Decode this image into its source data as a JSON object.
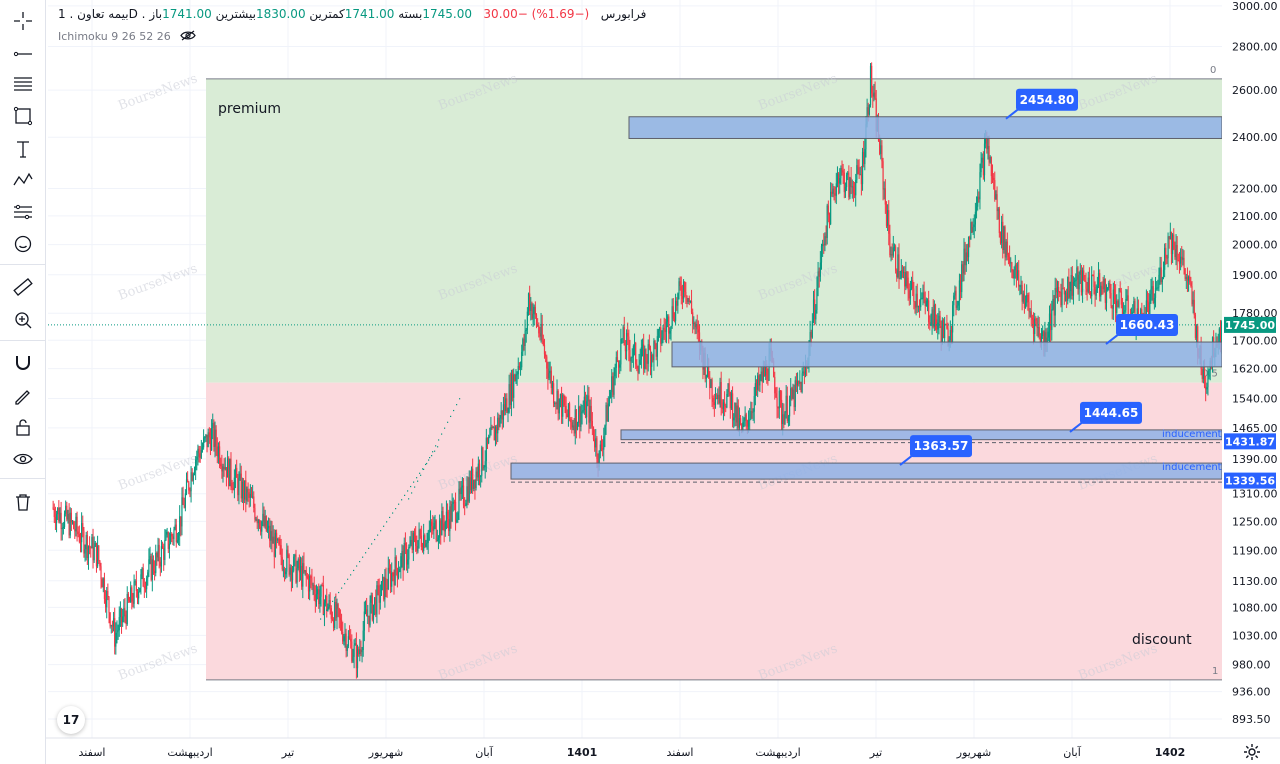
{
  "header": {
    "symbol_line": "بیمه تعاون . 1D . فرابورس",
    "open_label": "باز",
    "open_value": "1741.00",
    "high_label": "بیشترین",
    "high_value": "1830.00",
    "low_label": "کمترین",
    "low_value": "1741.00",
    "close_label": "بسته",
    "close_value": "1745.00",
    "change_value": "−30.00",
    "change_pct": "(−1.69%)",
    "indicator_label": "Ichimoku 9 26 52 26"
  },
  "toolbar": {
    "icons": [
      "crosshair-icon",
      "trend-line-icon",
      "fib-retracement-icon",
      "rectangle-icon",
      "text-icon",
      "pattern-icon",
      "forecast-icon",
      "emoji-icon",
      "ruler-icon",
      "zoom-in-icon",
      "magnet-icon",
      "pencil-lock-icon",
      "lock-icon",
      "eye-icon",
      "trash-icon"
    ]
  },
  "chart_data": {
    "type": "candlestick",
    "title": "بیمه تعاون . 1D . فرابورس",
    "y_axis": {
      "scale": "log",
      "ticks": [
        "3000.00",
        "2800.00",
        "2600.00",
        "2400.00",
        "2200.00",
        "2100.00",
        "2000.00",
        "1900.00",
        "1780.00",
        "1700.00",
        "1620.00",
        "1540.00",
        "1465.00",
        "1390.00",
        "1310.00",
        "1250.00",
        "1190.00",
        "1130.00",
        "1080.00",
        "1030.00",
        "980.00",
        "936.00",
        "893.50"
      ],
      "range": [
        880,
        3030
      ]
    },
    "x_axis": {
      "ticks": [
        "اسفند",
        "اردیبهشت",
        "تیر",
        "شهریور",
        "آبان",
        "1401",
        "اسفند",
        "اردیبهشت",
        "تیر",
        "شهریور",
        "آبان",
        "1402"
      ]
    },
    "last_price": "1745.00",
    "last_price_color": "#089981",
    "zones": {
      "premium": {
        "label": "premium",
        "from": 1582,
        "to": 2650,
        "color": "#d9ecd6"
      },
      "discount": {
        "label": "discount",
        "from": 955,
        "to": 1582,
        "color": "#fbd9dd"
      },
      "top_level_label": "0",
      "mid_level_label": "0.5",
      "bottom_level_label": "1"
    },
    "order_blocks": [
      {
        "price_top": 2485,
        "price_bottom": 2395,
        "callout": "2454.80"
      },
      {
        "price_top": 1695,
        "price_bottom": 1625,
        "callout": "1660.43"
      },
      {
        "price_top": 1460,
        "price_bottom": 1436,
        "callout": "1444.65",
        "tag": "1431.87",
        "note": "inducement"
      },
      {
        "price_top": 1380,
        "price_bottom": 1343,
        "callout": "1363.57",
        "tag": "1339.56",
        "note": "inducement"
      }
    ],
    "block_color": "#8fb1e6",
    "callout_color": "#2962ff",
    "up_color": "#089981",
    "down_color": "#f23645",
    "watermark": "BourseNews",
    "series": [
      {
        "name": "close",
        "points": [
          [
            0,
            1280
          ],
          [
            18,
            1240
          ],
          [
            40,
            1180
          ],
          [
            55,
            1030
          ],
          [
            75,
            1120
          ],
          [
            95,
            1180
          ],
          [
            112,
            1250
          ],
          [
            125,
            1390
          ],
          [
            140,
            1450
          ],
          [
            155,
            1360
          ],
          [
            175,
            1290
          ],
          [
            200,
            1180
          ],
          [
            225,
            1130
          ],
          [
            250,
            1060
          ],
          [
            268,
            990
          ],
          [
            275,
            1060
          ],
          [
            300,
            1150
          ],
          [
            320,
            1210
          ],
          [
            345,
            1250
          ],
          [
            360,
            1300
          ],
          [
            380,
            1400
          ],
          [
            400,
            1540
          ],
          [
            415,
            1700
          ],
          [
            418,
            1830
          ],
          [
            428,
            1720
          ],
          [
            440,
            1560
          ],
          [
            455,
            1480
          ],
          [
            470,
            1520
          ],
          [
            480,
            1390
          ],
          [
            490,
            1560
          ],
          [
            500,
            1700
          ],
          [
            515,
            1640
          ],
          [
            530,
            1680
          ],
          [
            545,
            1790
          ],
          [
            555,
            1880
          ],
          [
            565,
            1720
          ],
          [
            580,
            1560
          ],
          [
            595,
            1540
          ],
          [
            605,
            1450
          ],
          [
            618,
            1560
          ],
          [
            630,
            1640
          ],
          [
            640,
            1500
          ],
          [
            650,
            1540
          ],
          [
            660,
            1600
          ],
          [
            668,
            1780
          ],
          [
            678,
            2050
          ],
          [
            690,
            2270
          ],
          [
            700,
            2200
          ],
          [
            710,
            2260
          ],
          [
            718,
            2650
          ],
          [
            725,
            2400
          ],
          [
            735,
            2000
          ],
          [
            748,
            1870
          ],
          [
            762,
            1820
          ],
          [
            775,
            1760
          ],
          [
            785,
            1710
          ],
          [
            795,
            1850
          ],
          [
            808,
            2100
          ],
          [
            820,
            2380
          ],
          [
            832,
            2050
          ],
          [
            845,
            1900
          ],
          [
            858,
            1780
          ],
          [
            870,
            1700
          ],
          [
            882,
            1840
          ],
          [
            898,
            1880
          ],
          [
            912,
            1870
          ],
          [
            925,
            1850
          ],
          [
            940,
            1800
          ],
          [
            955,
            1760
          ],
          [
            968,
            1840
          ],
          [
            980,
            2030
          ],
          [
            990,
            1960
          ],
          [
            1000,
            1820
          ],
          [
            1008,
            1620
          ],
          [
            1012,
            1590
          ],
          [
            1020,
            1700
          ],
          [
            1028,
            1745
          ]
        ]
      }
    ]
  },
  "footer": {
    "logo": "17"
  }
}
